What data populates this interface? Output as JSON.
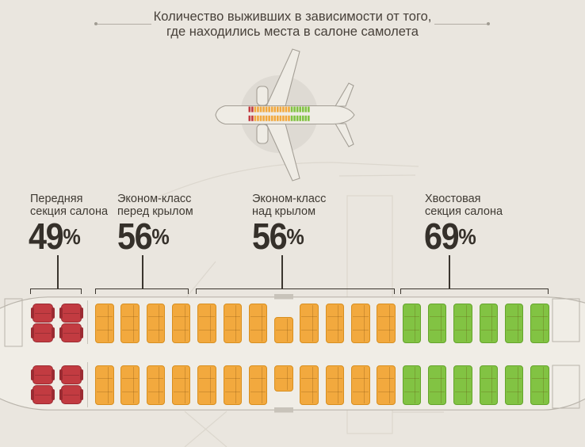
{
  "title": {
    "line1": "Количество выживших в зависимости от того,",
    "line2": "где находились места в салоне самолета"
  },
  "percent_sign": "%",
  "sections": [
    {
      "name": "front",
      "label_line1": "Передняя",
      "label_line2": "секция салона",
      "value": "49"
    },
    {
      "name": "economy-front",
      "label_line1": "Эконом-класс",
      "label_line2": "перед крылом",
      "value": "56"
    },
    {
      "name": "economy-over-wing",
      "label_line1": "Эконом-класс",
      "label_line2": "над крылом",
      "value": "56"
    },
    {
      "name": "tail",
      "label_line1": "Хвостовая",
      "label_line2": "секция салона",
      "value": "69"
    }
  ],
  "colors": {
    "background": "#eae6df",
    "front_seat": "#c23b41",
    "front_border": "#9b2b32",
    "economy_seat": "#f2a93e",
    "economy_border": "#d88f20",
    "tail_seat": "#82c343",
    "tail_border": "#64a42c",
    "line_dark": "#3a352e",
    "fuselage_fill": "#f0ede6",
    "fuselage_stroke": "#b9b4ab"
  },
  "chart_data": {
    "type": "infographic",
    "title": "Количество выживших в зависимости от того, где находились места в салоне самолета",
    "categories": [
      "Передняя секция салона",
      "Эконом-класс перед крылом",
      "Эконом-класс над крылом",
      "Хвостовая секция салона"
    ],
    "values": [
      49,
      56,
      56,
      69
    ],
    "unit": "%",
    "section_colors": [
      "#c23b41",
      "#f2a93e",
      "#f2a93e",
      "#82c343"
    ],
    "legend_position": "none",
    "notes": "Seat map of airplane cabin: front section red, economy over/before wing orange, tail section green; higher survival toward tail"
  },
  "seatmap": {
    "bands": [
      "top",
      "bottom"
    ],
    "business": {
      "columns": 2,
      "seats_per_column_per_band": 2,
      "color": "#c23b41",
      "border": "#9b2b32"
    },
    "economy_sections": [
      {
        "name": "economy-front-wing",
        "columns": 4,
        "color": "#f2a93e",
        "border": "#d88f20"
      },
      {
        "name": "economy-over-wing",
        "columns": 8,
        "color": "#f2a93e",
        "border": "#d88f20",
        "exit_column": 3
      },
      {
        "name": "tail",
        "columns": 6,
        "color": "#82c343",
        "border": "#64a42c"
      }
    ],
    "seats_per_full_column": 3,
    "seats_per_exit_column": 2
  },
  "mini_seatmap": {
    "red": 2,
    "orange": 13,
    "green": 7
  }
}
